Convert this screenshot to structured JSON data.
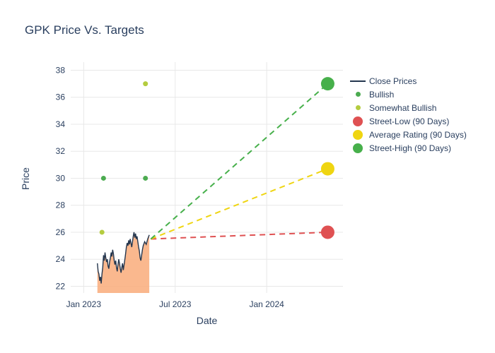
{
  "title": "GPK Price Vs. Targets",
  "axes": {
    "x_label": "Date",
    "y_label": "Price"
  },
  "legend": {
    "items": [
      {
        "label": "Close Prices",
        "symbol": "line",
        "color": "#24364e"
      },
      {
        "label": "Bullish",
        "symbol": "dot-small",
        "color": "#4cab50"
      },
      {
        "label": "Somewhat Bullish",
        "symbol": "dot-small",
        "color": "#b4cc3f"
      },
      {
        "label": "Street-Low (90 Days)",
        "symbol": "dot-large",
        "color": "#df5152"
      },
      {
        "label": "Average Rating (90 Days)",
        "symbol": "dot-large",
        "color": "#efd511"
      },
      {
        "label": "Street-High (90 Days)",
        "symbol": "dot-large",
        "color": "#47b04b"
      }
    ]
  },
  "chart_data": {
    "type": "line",
    "title": "GPK Price Vs. Targets",
    "xlabel": "Date",
    "ylabel": "Price",
    "x_unit": "months since Jan 2023",
    "xlim": [
      -0.85,
      17.0
    ],
    "ylim": [
      21.5,
      38.6
    ],
    "x_ticks": [
      {
        "m": 0,
        "label": "Jan 2023"
      },
      {
        "m": 6,
        "label": "Jul 2023"
      },
      {
        "m": 12,
        "label": "Jan 2024"
      }
    ],
    "y_ticks": [
      22,
      24,
      26,
      28,
      30,
      32,
      34,
      36,
      38
    ],
    "grid": true,
    "grid_color": "#e8e8e8",
    "background": "#ffffff",
    "legend_position": "right",
    "close_prices": {
      "name": "Close Prices",
      "color": "#24364e",
      "fill_color": "rgba(249,172,122,0.85)",
      "points": [
        [
          0.9,
          23.7
        ],
        [
          0.95,
          23.1
        ],
        [
          1.0,
          22.9
        ],
        [
          1.05,
          22.4
        ],
        [
          1.1,
          22.7
        ],
        [
          1.15,
          22.2
        ],
        [
          1.2,
          22.9
        ],
        [
          1.25,
          23.4
        ],
        [
          1.3,
          24.3
        ],
        [
          1.35,
          23.9
        ],
        [
          1.4,
          24.5
        ],
        [
          1.45,
          24.1
        ],
        [
          1.5,
          23.8
        ],
        [
          1.55,
          24.0
        ],
        [
          1.6,
          23.5
        ],
        [
          1.65,
          23.3
        ],
        [
          1.7,
          23.8
        ],
        [
          1.75,
          24.1
        ],
        [
          1.8,
          24.5
        ],
        [
          1.85,
          24.2
        ],
        [
          1.9,
          24.7
        ],
        [
          1.95,
          24.4
        ],
        [
          2.0,
          23.9
        ],
        [
          2.05,
          23.6
        ],
        [
          2.1,
          23.9
        ],
        [
          2.15,
          23.4
        ],
        [
          2.2,
          23.1
        ],
        [
          2.25,
          23.6
        ],
        [
          2.3,
          24.0
        ],
        [
          2.35,
          23.7
        ],
        [
          2.4,
          23.3
        ],
        [
          2.45,
          23.0
        ],
        [
          2.5,
          23.4
        ],
        [
          2.55,
          23.7
        ],
        [
          2.6,
          23.2
        ],
        [
          2.65,
          23.6
        ],
        [
          2.7,
          24.0
        ],
        [
          2.75,
          24.4
        ],
        [
          2.8,
          24.9
        ],
        [
          2.85,
          25.2
        ],
        [
          2.9,
          25.0
        ],
        [
          2.95,
          25.4
        ],
        [
          3.0,
          25.1
        ],
        [
          3.05,
          25.5
        ],
        [
          3.1,
          25.2
        ],
        [
          3.15,
          24.9
        ],
        [
          3.2,
          25.3
        ],
        [
          3.25,
          25.7
        ],
        [
          3.3,
          26.0
        ],
        [
          3.35,
          25.6
        ],
        [
          3.4,
          25.9
        ],
        [
          3.45,
          25.5
        ],
        [
          3.5,
          25.7
        ],
        [
          3.55,
          25.3
        ],
        [
          3.6,
          24.9
        ],
        [
          3.65,
          24.6
        ],
        [
          3.7,
          24.1
        ],
        [
          3.75,
          23.9
        ],
        [
          3.8,
          24.3
        ],
        [
          3.85,
          24.7
        ],
        [
          3.9,
          25.0
        ],
        [
          4.0,
          25.3
        ],
        [
          4.1,
          25.1
        ],
        [
          4.2,
          25.5
        ],
        [
          4.3,
          25.8
        ]
      ]
    },
    "ratings": [
      {
        "name": "Bullish",
        "color": "#4cab50",
        "size": 3.5,
        "points": [
          [
            1.3,
            30.0
          ],
          [
            4.05,
            30.0
          ]
        ]
      },
      {
        "name": "Somewhat Bullish",
        "color": "#b4cc3f",
        "size": 3.5,
        "points": [
          [
            1.2,
            26.0
          ],
          [
            4.05,
            37.0
          ]
        ]
      }
    ],
    "targets": [
      {
        "name": "Street-Low (90 Days)",
        "color": "#df5152",
        "start": [
          4.4,
          25.5
        ],
        "end": [
          16.0,
          26.0
        ],
        "value": 26.0
      },
      {
        "name": "Average Rating (90 Days)",
        "color": "#efd511",
        "start": [
          4.4,
          25.5
        ],
        "end": [
          16.0,
          30.7
        ],
        "value": 30.7
      },
      {
        "name": "Street-High (90 Days)",
        "color": "#47b04b",
        "start": [
          4.4,
          25.5
        ],
        "end": [
          16.0,
          37.0
        ],
        "value": 37.0
      }
    ]
  }
}
